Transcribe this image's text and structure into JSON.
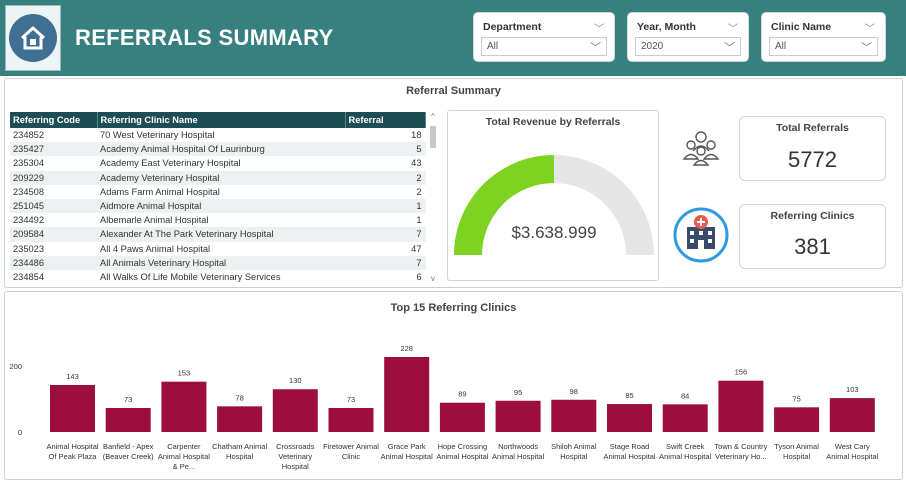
{
  "header": {
    "title": "REFERRALS SUMMARY"
  },
  "slicers": [
    {
      "label": "Department",
      "value": "All"
    },
    {
      "label": "Year, Month",
      "value": "2020"
    },
    {
      "label": "Clinic Name",
      "value": "All"
    }
  ],
  "summary": {
    "title": "Referral Summary",
    "table": {
      "headers": [
        "Referring Code",
        "Referring Clinic Name",
        "Referral"
      ],
      "rows": [
        [
          "234852",
          "70 West Veterinary Hospital",
          "18"
        ],
        [
          "235427",
          "Academy Animal Hospital Of Laurinburg",
          "5"
        ],
        [
          "235304",
          "Academy East Veterinary Hospital",
          "43"
        ],
        [
          "209229",
          "Academy Veterinary Hospital",
          "2"
        ],
        [
          "234508",
          "Adams Farm Animal Hospital",
          "2"
        ],
        [
          "251045",
          "Aidmore Animal Hospital",
          "1"
        ],
        [
          "234492",
          "Albemarle Animal Hospital",
          "1"
        ],
        [
          "209584",
          "Alexander At The Park Veterinary Hospital",
          "7"
        ],
        [
          "235023",
          "All 4 Paws Animal Hospital",
          "47"
        ],
        [
          "234486",
          "All Animals Veterinary Hospital",
          "7"
        ],
        [
          "234854",
          "All Walks Of Life Mobile Veterinary Services",
          "6"
        ]
      ]
    },
    "gauge": {
      "title": "Total Revenue by Referrals",
      "value_label": "$3.638.999",
      "fill_fraction": 0.5,
      "fill_color": "#7ed321",
      "track_color": "#e6e6e6"
    },
    "total_referrals": {
      "title": "Total Referrals",
      "value": "5772",
      "icon": "people-group-icon"
    },
    "referring_clinics": {
      "title": "Referring Clinics",
      "value": "381",
      "icon": "hospital-icon"
    }
  },
  "chart_data": {
    "type": "bar",
    "title": "Top 15 Referring Clinics",
    "categories": [
      "Animal Hospital Of Peak Plaza",
      "Banfield - Apex (Beaver Creek)",
      "Carpenter Animal Hospital & Pe...",
      "Chatham Animal Hospital",
      "Crossroads Veterinary Hospital",
      "Firetower Animal Clinic",
      "Grace Park Animal Hospital",
      "Hope Crossing Animal Hospital",
      "Northwoods Animal Hospital",
      "Shiloh Animal Hospital",
      "Stage Road Animal Hospital",
      "Swift Creek Animal Hospital",
      "Town & Country Veterinary Ho...",
      "Tyson Animal Hospital",
      "West Cary Animal Hospital"
    ],
    "values": [
      143,
      73,
      153,
      78,
      130,
      73,
      228,
      89,
      95,
      98,
      85,
      84,
      156,
      75,
      103
    ],
    "ylim": [
      0,
      228
    ],
    "ytick_labels": [
      "0",
      "200"
    ],
    "bar_color": "#9b0e3e"
  }
}
